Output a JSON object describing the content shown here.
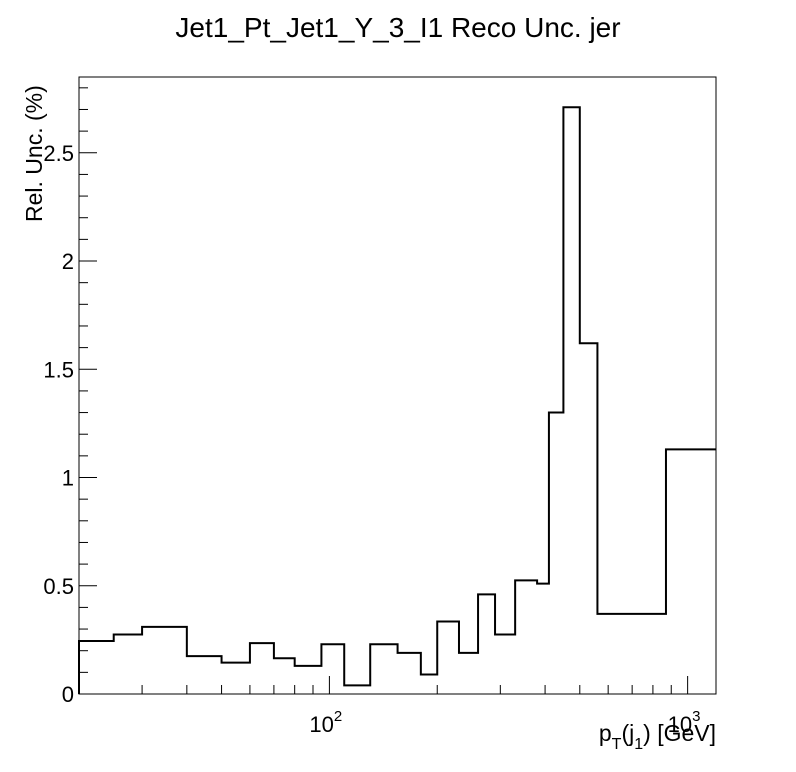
{
  "chart_data": {
    "type": "step-histogram",
    "title": "Jet1_Pt_Jet1_Y_3_I1 Reco Unc. jer",
    "ylabel": "Rel. Unc. (%)",
    "xlabel": {
      "p": "p",
      "T": "T",
      "open": "(j",
      "one": "1",
      "close": ") [GeV]"
    },
    "xscale": "log",
    "xlim": [
      20,
      1200
    ],
    "ylim": [
      0,
      2.85
    ],
    "x_major_ticks": [
      {
        "value": 100,
        "base": "10",
        "exp": "2"
      },
      {
        "value": 1000,
        "base": "10",
        "exp": "3"
      }
    ],
    "y_ticks": [
      {
        "value": 0,
        "label": "0"
      },
      {
        "value": 0.5,
        "label": "0.5"
      },
      {
        "value": 1,
        "label": "1"
      },
      {
        "value": 1.5,
        "label": "1.5"
      },
      {
        "value": 2,
        "label": "2"
      },
      {
        "value": 2.5,
        "label": "2.5"
      }
    ],
    "bin_edges": [
      20,
      25,
      30,
      40,
      50,
      60,
      70,
      80,
      95,
      110,
      130,
      155,
      180,
      200,
      230,
      260,
      290,
      330,
      380,
      410,
      450,
      500,
      560,
      870,
      1200
    ],
    "values": [
      0.245,
      0.275,
      0.31,
      0.175,
      0.145,
      0.235,
      0.165,
      0.13,
      0.23,
      0.04,
      0.23,
      0.19,
      0.09,
      0.335,
      0.19,
      0.46,
      0.275,
      0.525,
      0.51,
      1.3,
      2.71,
      1.62,
      0.37,
      1.13
    ],
    "line_color": "#000000"
  }
}
